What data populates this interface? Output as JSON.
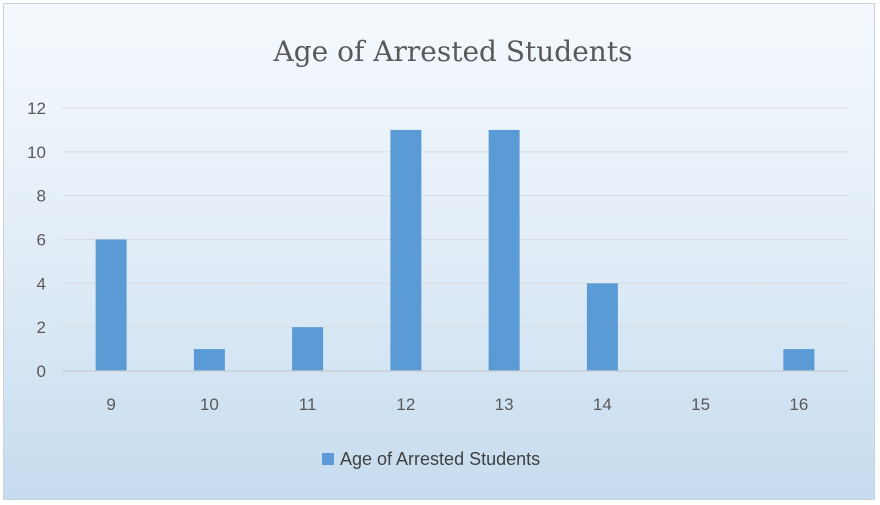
{
  "chart_data": {
    "type": "bar",
    "title": "Age of  Arrested Students",
    "xlabel": "",
    "ylabel": "",
    "categories": [
      "9",
      "10",
      "11",
      "12",
      "13",
      "14",
      "15",
      "16"
    ],
    "series": [
      {
        "name": "Age of Arrested Students",
        "values": [
          6,
          1,
          2,
          11,
          11,
          4,
          0,
          1
        ]
      }
    ],
    "ylim": [
      0,
      12
    ],
    "yticks": [
      "0",
      "2",
      "4",
      "6",
      "8",
      "10",
      "12"
    ],
    "grid": true,
    "legend": "bottom-center",
    "colors": {
      "bar": "#5b9bd5"
    }
  }
}
